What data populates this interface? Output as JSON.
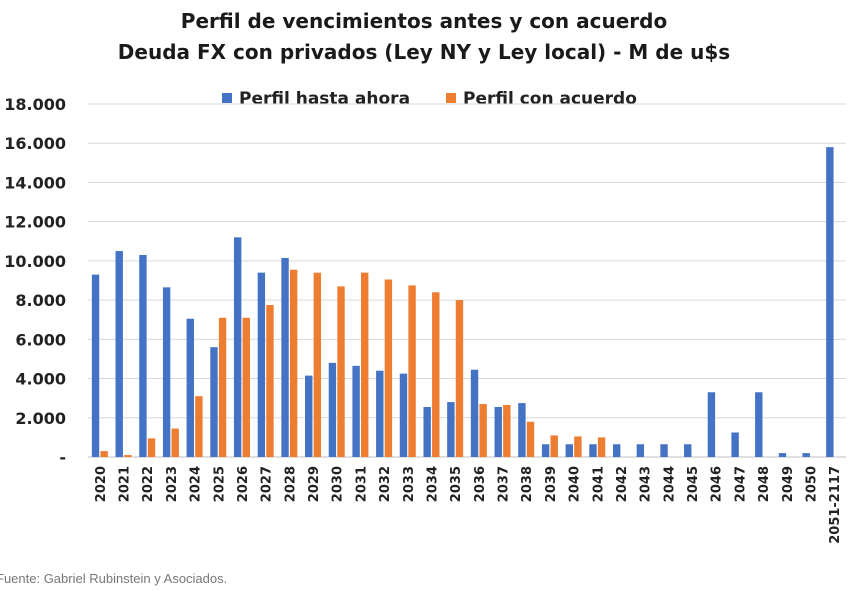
{
  "source": "Fuente: Gabriel Rubinstein y Asociados.",
  "chart_data": {
    "type": "bar",
    "title": [
      "Perfil de vencimientos antes y con acuerdo",
      "Deuda FX con privados (Ley NY y Ley local) - M de u$s"
    ],
    "categories": [
      "2020",
      "2021",
      "2022",
      "2023",
      "2024",
      "2025",
      "2026",
      "2027",
      "2028",
      "2029",
      "2030",
      "2031",
      "2032",
      "2033",
      "2034",
      "2035",
      "2036",
      "2037",
      "2038",
      "2039",
      "2040",
      "2041",
      "2042",
      "2043",
      "2044",
      "2045",
      "2046",
      "2047",
      "2048",
      "2049",
      "2050",
      "2051-2117"
    ],
    "series": [
      {
        "name": "Perfil hasta ahora",
        "color": "#4472C4",
        "values": [
          9300,
          10500,
          10300,
          8650,
          7050,
          5600,
          11200,
          9400,
          10150,
          4150,
          4800,
          4650,
          4400,
          4250,
          2550,
          2800,
          4450,
          2550,
          2750,
          650,
          650,
          650,
          650,
          650,
          650,
          650,
          3300,
          1250,
          3300,
          200,
          200,
          15800
        ]
      },
      {
        "name": "Perfil con acuerdo",
        "color": "#ED7D31",
        "values": [
          300,
          100,
          950,
          1450,
          3100,
          7100,
          7100,
          7750,
          9550,
          9400,
          8700,
          9400,
          9050,
          8750,
          8400,
          8000,
          2700,
          2650,
          1800,
          1100,
          1050,
          1000,
          0,
          0,
          0,
          0,
          0,
          0,
          0,
          0,
          0,
          0
        ]
      }
    ],
    "ylim": [
      0,
      18000
    ],
    "yticks": [
      0,
      2000,
      4000,
      6000,
      8000,
      10000,
      12000,
      14000,
      16000,
      18000
    ],
    "ytick_labels": [
      "-",
      "2.000",
      "4.000",
      "6.000",
      "8.000",
      "10.000",
      "12.000",
      "14.000",
      "16.000",
      "18.000"
    ],
    "grid": true,
    "legend_position": "top-center",
    "xlabel": "",
    "ylabel": ""
  }
}
